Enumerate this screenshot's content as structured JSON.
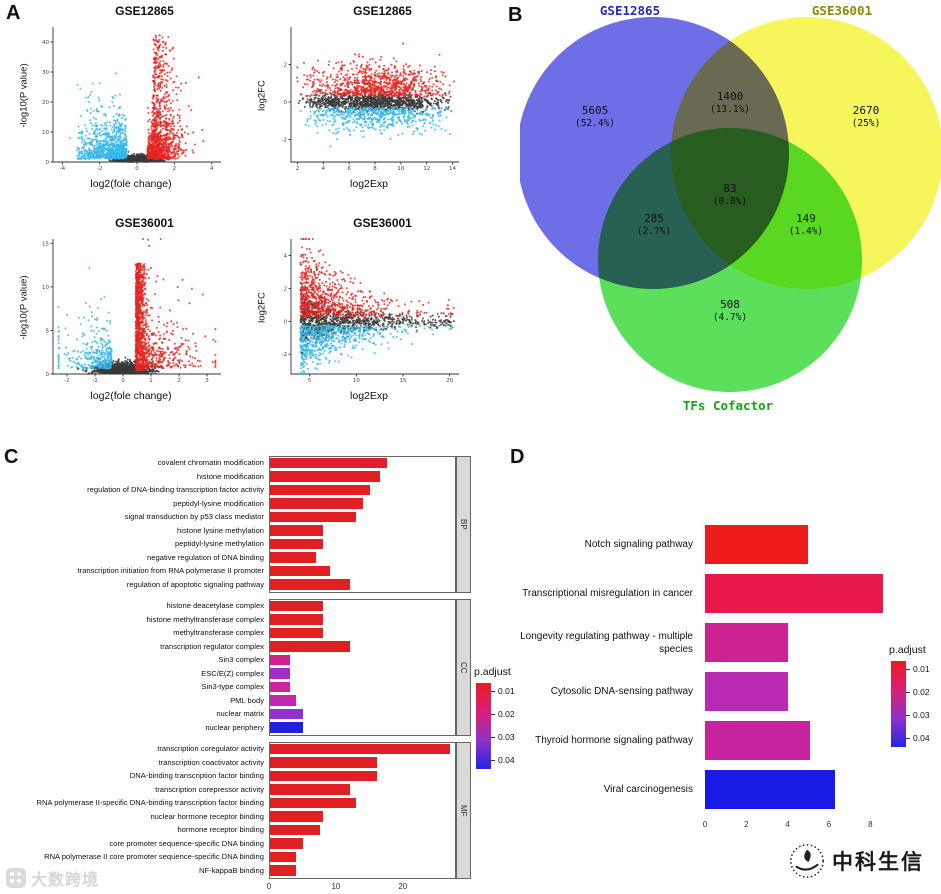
{
  "figure_labels": {
    "a": "A",
    "b": "B",
    "c": "C",
    "d": "D"
  },
  "chart_data": [
    {
      "id": "go-enrichment",
      "type": "bar",
      "orientation": "horizontal",
      "xticks": [
        0,
        10,
        20
      ],
      "xmax": 27.5,
      "legend": {
        "title": "p.adjust",
        "ticks": [
          "0.01",
          "0.02",
          "0.03",
          "0.04"
        ],
        "gradient": [
          "#ed1b1e",
          "#d91f77",
          "#9130c8",
          "#2525e4"
        ]
      },
      "facets": [
        {
          "name": "BP",
          "bars": [
            {
              "label": "covalent chromatin modification",
              "value": 17.5,
              "color": "#e02025"
            },
            {
              "label": "histone modification",
              "value": 16.5,
              "color": "#e02025"
            },
            {
              "label": "regulation of DNA-binding transcription factor activity",
              "value": 15,
              "color": "#e02025"
            },
            {
              "label": "peptidyl-lysine modification",
              "value": 14,
              "color": "#e02025"
            },
            {
              "label": "signal transduction by p53 class mediator",
              "value": 13,
              "color": "#e02025"
            },
            {
              "label": "histone lysine methylation",
              "value": 8,
              "color": "#e02025"
            },
            {
              "label": "peptidyl-lysine methylation",
              "value": 8,
              "color": "#e02025"
            },
            {
              "label": "negative regulation of DNA binding",
              "value": 7,
              "color": "#e02025"
            },
            {
              "label": "transcription initiation from RNA polymerase II promoter",
              "value": 9,
              "color": "#e02025"
            },
            {
              "label": "regulation of apoptotic signaling pathway",
              "value": 12,
              "color": "#e02025"
            }
          ]
        },
        {
          "name": "CC",
          "bars": [
            {
              "label": "histone deacetylase complex",
              "value": 8,
              "color": "#e02025"
            },
            {
              "label": "histone methyltransferase complex",
              "value": 8,
              "color": "#e02025"
            },
            {
              "label": "methyltransferase complex",
              "value": 8,
              "color": "#e02025"
            },
            {
              "label": "transcription regulator complex",
              "value": 12,
              "color": "#e02025"
            },
            {
              "label": "Sin3 complex",
              "value": 3,
              "color": "#d5208b"
            },
            {
              "label": "ESC/E(Z) complex",
              "value": 3,
              "color": "#a42cc9"
            },
            {
              "label": "Sin3-type complex",
              "value": 3,
              "color": "#cb24a0"
            },
            {
              "label": "PML body",
              "value": 4,
              "color": "#c127ae"
            },
            {
              "label": "nuclear matrix",
              "value": 5,
              "color": "#9232d2"
            },
            {
              "label": "nuclear periphery",
              "value": 5,
              "color": "#2121dd"
            }
          ]
        },
        {
          "name": "MF",
          "bars": [
            {
              "label": "transcription coregulator activity",
              "value": 27,
              "color": "#e02025"
            },
            {
              "label": "transcription coactivator activity",
              "value": 16,
              "color": "#e02025"
            },
            {
              "label": "DNA-binding transcription factor binding",
              "value": 16,
              "color": "#e02025"
            },
            {
              "label": "transcription corepressor activity",
              "value": 12,
              "color": "#e02025"
            },
            {
              "label": "RNA polymerase II-specific DNA-binding transcription factor binding",
              "value": 13,
              "color": "#e02025"
            },
            {
              "label": "nuclear hormone receptor binding",
              "value": 8,
              "color": "#e02025"
            },
            {
              "label": "hormone receptor binding",
              "value": 7.5,
              "color": "#e02025"
            },
            {
              "label": "core promoter sequence-specific DNA binding",
              "value": 5,
              "color": "#e02025"
            },
            {
              "label": "RNA polymerase II core promoter sequence-specific DNA binding",
              "value": 4,
              "color": "#e02025"
            },
            {
              "label": "NF-kappaB binding",
              "value": 4,
              "color": "#e02025"
            }
          ]
        }
      ]
    },
    {
      "id": "kegg-enrichment",
      "type": "bar",
      "orientation": "horizontal",
      "xticks": [
        0,
        2,
        4,
        6,
        8
      ],
      "xmax": 9,
      "legend": {
        "title": "p.adjust",
        "ticks": [
          "0.01",
          "0.02",
          "0.03",
          "0.04"
        ],
        "gradient": [
          "#ed1b1e",
          "#d91f77",
          "#9130c8",
          "#2525e4"
        ]
      },
      "bars": [
        {
          "label": "Notch signaling pathway",
          "value": 5,
          "color": "#ee1b1b"
        },
        {
          "label": "Transcriptional misregulation in cancer",
          "value": 8.6,
          "color": "#e8194a"
        },
        {
          "label": "Longevity regulating pathway - multiple species",
          "value": 4,
          "color": "#cf2394"
        },
        {
          "label": "Cytosolic DNA-sensing pathway",
          "value": 4,
          "color": "#b929b3"
        },
        {
          "label": "Thyroid hormone signaling pathway",
          "value": 5.1,
          "color": "#c924a0"
        },
        {
          "label": "Viral carcinogenesis",
          "value": 6.3,
          "color": "#1a1ae6"
        }
      ]
    },
    {
      "id": "venn-tf-overlap",
      "type": "venn",
      "sets": [
        {
          "name": "GSE12865",
          "fill": "#6e6ee6",
          "label_color": "#2626cc"
        },
        {
          "name": "GSE36001",
          "fill": "#f6f65c",
          "label_color": "#8a8a00"
        },
        {
          "name": "TFs Cofactor",
          "fill": "#5ce05c",
          "label_color": "#18a018"
        }
      ],
      "regions": [
        {
          "id": "gse12865-only",
          "value": "5605",
          "pct": "(52.4%)"
        },
        {
          "id": "gse12865-gse36001",
          "value": "1400",
          "pct": "(13.1%)"
        },
        {
          "id": "gse36001-only",
          "value": "2670",
          "pct": "(25%)"
        },
        {
          "id": "all-three",
          "value": "83",
          "pct": "(0.8%)"
        },
        {
          "id": "gse12865-tfs",
          "value": "285",
          "pct": "(2.7%)"
        },
        {
          "id": "gse36001-tfs",
          "value": "149",
          "pct": "(1.4%)"
        },
        {
          "id": "tfs-only",
          "value": "508",
          "pct": "(4.7%)"
        }
      ]
    },
    {
      "id": "expression-scatter-panel",
      "type": "scatter",
      "point_colors": {
        "up": "#e32522",
        "down": "#35b8e8",
        "ns": "#3a3a3a"
      },
      "plots": [
        {
          "title": "GSE12865",
          "xlabel": "log2(fole change)",
          "ylabel": "-log10(P value)",
          "kind": "volcano1",
          "seed": 11,
          "xlim": [
            -4.5,
            4.5
          ],
          "ylim": [
            0,
            45
          ],
          "xticks": [
            -4,
            -2,
            0,
            2,
            4
          ],
          "yticks": [
            0,
            10,
            20,
            30,
            40
          ]
        },
        {
          "title": "GSE12865",
          "xlabel": "log2Exp",
          "ylabel": "log2FC",
          "kind": "ma1",
          "seed": 22,
          "xlim": [
            1.5,
            14.5
          ],
          "ylim": [
            -3.2,
            4
          ],
          "xticks": [
            2,
            4,
            6,
            8,
            10,
            12,
            14
          ],
          "yticks": [
            -2,
            0,
            2
          ]
        },
        {
          "title": "GSE36001",
          "xlabel": "log2(fole change)",
          "ylabel": "-log10(P value)",
          "kind": "volcano2",
          "seed": 33,
          "xlim": [
            -2.5,
            3.5
          ],
          "ylim": [
            0,
            15.5
          ],
          "xticks": [
            -2,
            -1,
            0,
            1,
            2,
            3
          ],
          "yticks": [
            0,
            5,
            10,
            15
          ]
        },
        {
          "title": "GSE36001",
          "xlabel": "log2Exp",
          "ylabel": "log2FC",
          "kind": "ma2",
          "seed": 44,
          "xlim": [
            3,
            21
          ],
          "ylim": [
            -3.2,
            5
          ],
          "xticks": [
            5,
            10,
            15,
            20
          ],
          "yticks": [
            -2,
            0,
            2,
            4
          ]
        }
      ]
    }
  ],
  "watermarks": {
    "left": "大数跨境",
    "right": "中科生信"
  }
}
